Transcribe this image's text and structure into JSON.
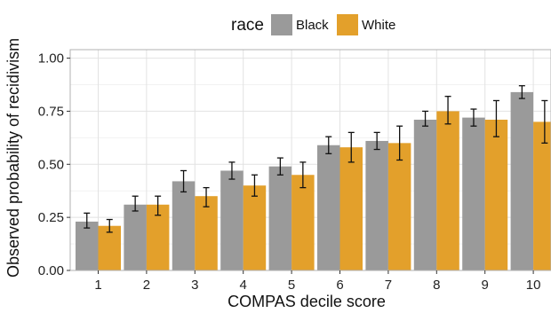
{
  "chart_data": {
    "type": "bar",
    "xlabel": "COMPAS decile score",
    "ylabel": "Observed probability of recidivism",
    "ylim": [
      0,
      1.04
    ],
    "yticks": [
      "0.00",
      "0.25",
      "0.50",
      "0.75",
      "1.00"
    ],
    "ytick_values": [
      0,
      0.25,
      0.5,
      0.75,
      1.0
    ],
    "categories": [
      "1",
      "2",
      "3",
      "4",
      "5",
      "6",
      "7",
      "8",
      "9",
      "10"
    ],
    "legend": {
      "title": "race",
      "placement": "top"
    },
    "grid": true,
    "error_bars": true,
    "series": [
      {
        "name": "Black",
        "color": "#9a9a9a",
        "values": [
          0.23,
          0.31,
          0.42,
          0.47,
          0.49,
          0.59,
          0.61,
          0.71,
          0.72,
          0.84
        ],
        "err_low": [
          0.2,
          0.28,
          0.37,
          0.43,
          0.45,
          0.55,
          0.57,
          0.68,
          0.68,
          0.81
        ],
        "err_high": [
          0.27,
          0.35,
          0.47,
          0.51,
          0.53,
          0.63,
          0.65,
          0.75,
          0.76,
          0.87
        ]
      },
      {
        "name": "White",
        "color": "#e3a02b",
        "values": [
          0.21,
          0.31,
          0.35,
          0.4,
          0.45,
          0.58,
          0.6,
          0.75,
          0.71,
          0.7
        ],
        "err_low": [
          0.18,
          0.26,
          0.3,
          0.35,
          0.39,
          0.51,
          0.52,
          0.69,
          0.63,
          0.6
        ],
        "err_high": [
          0.24,
          0.35,
          0.39,
          0.45,
          0.51,
          0.65,
          0.68,
          0.82,
          0.8,
          0.8
        ]
      }
    ]
  }
}
